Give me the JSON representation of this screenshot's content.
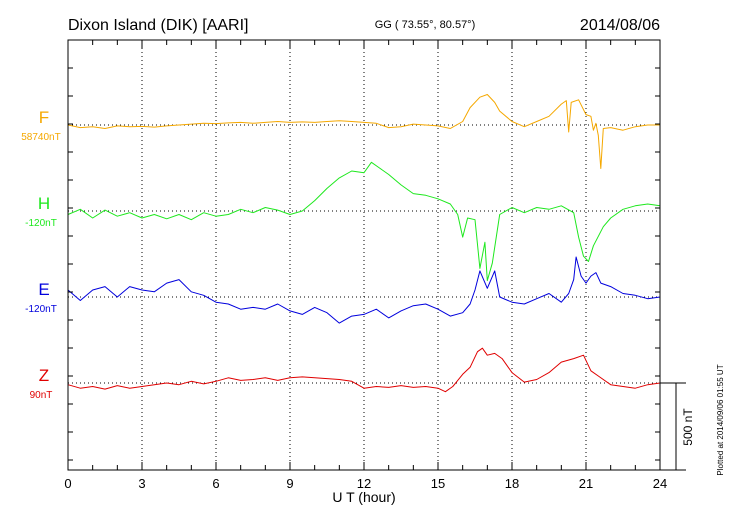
{
  "header": {
    "station": "Dixon Island (DIK)  [AARI]",
    "coords": "GG ( 73.55°,  80.57°)",
    "date": "2014/08/06"
  },
  "side_note": "Plotted at 2014/09/06 01:55 UT",
  "chart_data": {
    "type": "line",
    "xlabel": "U T (hour)",
    "xlim": [
      0,
      24
    ],
    "xticks": [
      "0",
      "3",
      "6",
      "9",
      "12",
      "15",
      "18",
      "21",
      "24"
    ],
    "scale_bar": {
      "label": "500 nT",
      "value": 500
    },
    "series": [
      {
        "name": "F",
        "baseline": "58740nT",
        "color": "#f5a800",
        "points": [
          [
            0,
            0
          ],
          [
            0.5,
            -15
          ],
          [
            1,
            -10
          ],
          [
            1.5,
            -20
          ],
          [
            2,
            -5
          ],
          [
            2.5,
            -10
          ],
          [
            3,
            -8
          ],
          [
            3.5,
            -12
          ],
          [
            4,
            -5
          ],
          [
            4.5,
            0
          ],
          [
            5,
            5
          ],
          [
            5.5,
            10
          ],
          [
            6,
            8
          ],
          [
            6.5,
            12
          ],
          [
            7,
            15
          ],
          [
            7.5,
            10
          ],
          [
            8,
            15
          ],
          [
            8.5,
            20
          ],
          [
            9,
            15
          ],
          [
            9.5,
            18
          ],
          [
            10,
            15
          ],
          [
            10.5,
            20
          ],
          [
            11,
            25
          ],
          [
            11.5,
            20
          ],
          [
            12,
            15
          ],
          [
            12.5,
            10
          ],
          [
            13,
            -15
          ],
          [
            13.5,
            -10
          ],
          [
            14,
            5
          ],
          [
            14.5,
            0
          ],
          [
            15,
            -5
          ],
          [
            15.5,
            -20
          ],
          [
            16,
            20
          ],
          [
            16.3,
            100
          ],
          [
            16.7,
            160
          ],
          [
            17,
            175
          ],
          [
            17.3,
            130
          ],
          [
            17.5,
            80
          ],
          [
            18,
            20
          ],
          [
            18.5,
            -10
          ],
          [
            19,
            20
          ],
          [
            19.5,
            50
          ],
          [
            20,
            120
          ],
          [
            20.2,
            140
          ],
          [
            20.3,
            -40
          ],
          [
            20.4,
            130
          ],
          [
            20.7,
            145
          ],
          [
            21,
            60
          ],
          [
            21.2,
            50
          ],
          [
            21.3,
            -30
          ],
          [
            21.4,
            10
          ],
          [
            21.5,
            -60
          ],
          [
            21.6,
            -250
          ],
          [
            21.7,
            -20
          ],
          [
            22,
            -15
          ],
          [
            22.5,
            -30
          ],
          [
            23,
            -10
          ],
          [
            23.5,
            0
          ],
          [
            24,
            0
          ]
        ]
      },
      {
        "name": "H",
        "baseline": "-120nT",
        "color": "#1ee81e",
        "points": [
          [
            0,
            -20
          ],
          [
            0.5,
            10
          ],
          [
            1,
            -40
          ],
          [
            1.5,
            5
          ],
          [
            2,
            -30
          ],
          [
            2.5,
            -10
          ],
          [
            3,
            -40
          ],
          [
            3.5,
            -20
          ],
          [
            4,
            -45
          ],
          [
            4.5,
            -20
          ],
          [
            5,
            -50
          ],
          [
            5.5,
            -10
          ],
          [
            6,
            -30
          ],
          [
            6.5,
            -20
          ],
          [
            7,
            10
          ],
          [
            7.5,
            -10
          ],
          [
            8,
            20
          ],
          [
            8.5,
            5
          ],
          [
            9,
            -20
          ],
          [
            9.5,
            0
          ],
          [
            10,
            60
          ],
          [
            10.5,
            130
          ],
          [
            11,
            190
          ],
          [
            11.5,
            230
          ],
          [
            12,
            220
          ],
          [
            12.3,
            280
          ],
          [
            12.6,
            250
          ],
          [
            13,
            210
          ],
          [
            13.5,
            150
          ],
          [
            14,
            100
          ],
          [
            14.5,
            90
          ],
          [
            15,
            70
          ],
          [
            15.5,
            40
          ],
          [
            15.8,
            -20
          ],
          [
            16,
            -150
          ],
          [
            16.2,
            -40
          ],
          [
            16.5,
            -50
          ],
          [
            16.7,
            -330
          ],
          [
            16.9,
            -180
          ],
          [
            17,
            -400
          ],
          [
            17.2,
            -300
          ],
          [
            17.5,
            -20
          ],
          [
            18,
            20
          ],
          [
            18.5,
            -10
          ],
          [
            19,
            20
          ],
          [
            19.5,
            10
          ],
          [
            20,
            30
          ],
          [
            20.5,
            -10
          ],
          [
            20.7,
            -150
          ],
          [
            20.9,
            -260
          ],
          [
            21.1,
            -290
          ],
          [
            21.3,
            -200
          ],
          [
            21.7,
            -90
          ],
          [
            22,
            -40
          ],
          [
            22.5,
            10
          ],
          [
            23,
            30
          ],
          [
            23.5,
            40
          ],
          [
            24,
            30
          ]
        ]
      },
      {
        "name": "E",
        "baseline": "-120nT",
        "color": "#0000dd",
        "points": [
          [
            0,
            40
          ],
          [
            0.5,
            -20
          ],
          [
            1,
            40
          ],
          [
            1.5,
            60
          ],
          [
            2,
            0
          ],
          [
            2.5,
            60
          ],
          [
            3,
            40
          ],
          [
            3.5,
            30
          ],
          [
            4,
            80
          ],
          [
            4.5,
            100
          ],
          [
            5,
            30
          ],
          [
            5.5,
            10
          ],
          [
            6,
            -30
          ],
          [
            6.5,
            -40
          ],
          [
            7,
            -70
          ],
          [
            7.5,
            -60
          ],
          [
            8,
            -70
          ],
          [
            8.5,
            -40
          ],
          [
            9,
            -80
          ],
          [
            9.5,
            -100
          ],
          [
            10,
            -60
          ],
          [
            10.5,
            -90
          ],
          [
            11,
            -150
          ],
          [
            11.5,
            -110
          ],
          [
            12,
            -100
          ],
          [
            12.5,
            -70
          ],
          [
            13,
            -120
          ],
          [
            13.5,
            -80
          ],
          [
            14,
            -50
          ],
          [
            14.5,
            -40
          ],
          [
            15,
            -70
          ],
          [
            15.5,
            -110
          ],
          [
            16,
            -90
          ],
          [
            16.3,
            -40
          ],
          [
            16.5,
            40
          ],
          [
            16.7,
            150
          ],
          [
            17,
            50
          ],
          [
            17.3,
            150
          ],
          [
            17.5,
            0
          ],
          [
            18,
            -30
          ],
          [
            18.5,
            -40
          ],
          [
            19,
            -10
          ],
          [
            19.5,
            20
          ],
          [
            20,
            -30
          ],
          [
            20.3,
            20
          ],
          [
            20.5,
            100
          ],
          [
            20.6,
            230
          ],
          [
            20.8,
            120
          ],
          [
            21,
            80
          ],
          [
            21.2,
            120
          ],
          [
            21.4,
            140
          ],
          [
            21.6,
            80
          ],
          [
            22,
            60
          ],
          [
            22.5,
            20
          ],
          [
            23,
            10
          ],
          [
            23.5,
            -10
          ],
          [
            24,
            0
          ]
        ]
      },
      {
        "name": "Z",
        "baseline": "90nT",
        "color": "#e00000",
        "points": [
          [
            0,
            -10
          ],
          [
            0.5,
            -30
          ],
          [
            1,
            -20
          ],
          [
            1.5,
            -35
          ],
          [
            2,
            -15
          ],
          [
            2.5,
            -30
          ],
          [
            3,
            -20
          ],
          [
            3.5,
            -10
          ],
          [
            4,
            0
          ],
          [
            4.5,
            -10
          ],
          [
            5,
            10
          ],
          [
            5.5,
            -5
          ],
          [
            6,
            10
          ],
          [
            6.5,
            30
          ],
          [
            7,
            15
          ],
          [
            7.5,
            20
          ],
          [
            8,
            30
          ],
          [
            8.5,
            15
          ],
          [
            9,
            30
          ],
          [
            9.5,
            35
          ],
          [
            10,
            30
          ],
          [
            10.5,
            25
          ],
          [
            11,
            20
          ],
          [
            11.5,
            10
          ],
          [
            12,
            -30
          ],
          [
            12.5,
            -20
          ],
          [
            13,
            -25
          ],
          [
            13.5,
            -15
          ],
          [
            14,
            -25
          ],
          [
            14.5,
            -20
          ],
          [
            15,
            -30
          ],
          [
            15.3,
            -50
          ],
          [
            15.6,
            -20
          ],
          [
            16,
            50
          ],
          [
            16.3,
            90
          ],
          [
            16.6,
            180
          ],
          [
            16.8,
            200
          ],
          [
            17,
            160
          ],
          [
            17.3,
            170
          ],
          [
            17.6,
            140
          ],
          [
            18,
            60
          ],
          [
            18.5,
            5
          ],
          [
            19,
            20
          ],
          [
            19.5,
            60
          ],
          [
            20,
            120
          ],
          [
            20.5,
            140
          ],
          [
            20.9,
            160
          ],
          [
            21.2,
            70
          ],
          [
            21.5,
            40
          ],
          [
            22,
            -10
          ],
          [
            22.5,
            -20
          ],
          [
            23,
            -30
          ],
          [
            23.5,
            -10
          ],
          [
            24,
            0
          ]
        ]
      }
    ]
  }
}
